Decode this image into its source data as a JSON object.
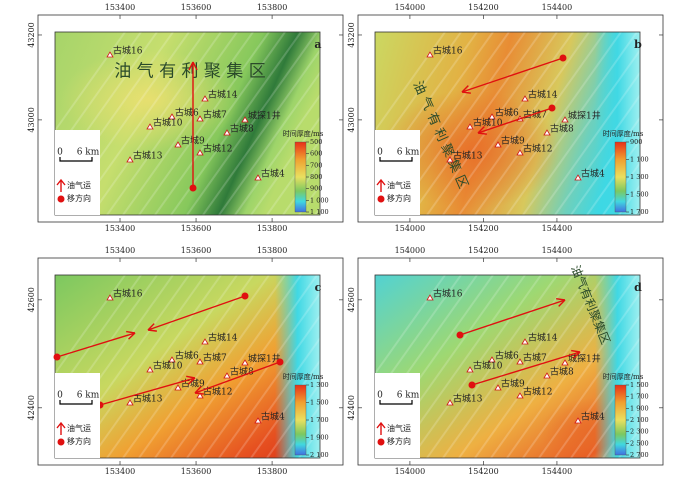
{
  "panels": [
    {
      "letter": "a",
      "xticks": [
        153400,
        153600,
        153800
      ],
      "xlim": [
        153229,
        153926
      ],
      "yticks": [
        43200,
        43000
      ],
      "ylim": [
        42776,
        43207
      ],
      "wells": [
        "古城16",
        "古城14",
        "古城6",
        "古城7",
        "古城10",
        "城探1井",
        "古城8",
        "古城9",
        "古城12",
        "古城13",
        "古城4"
      ],
      "region_label": "油 气 有 利 聚 集 区",
      "scale": [
        "0",
        "6 km"
      ],
      "legend": [
        "油气运",
        "移方向"
      ],
      "colorbar": {
        "title": "时间厚度/ms",
        "ticks": [
          500,
          600,
          700,
          800,
          900,
          {
            "value": 1000,
            "label": "1 000"
          },
          {
            "value": 1100,
            "label": "1 100"
          }
        ]
      }
    },
    {
      "letter": "b",
      "xticks": [
        154000,
        154200,
        154400
      ],
      "xlim": [
        153905,
        154626
      ],
      "yticks": [
        43200,
        43000
      ],
      "ylim": [
        42776,
        43207
      ],
      "wells": [
        "古城16",
        "古城14",
        "古城6",
        "古城7",
        "古城10",
        "城探1井",
        "古城8",
        "古城9",
        "古城12",
        "古城13",
        "古城4"
      ],
      "region_label": "油 气 有 利 聚 集 区",
      "scale": [
        "0",
        "6 km"
      ],
      "legend": [
        "油气运",
        "移方向"
      ],
      "colorbar": {
        "title": "时间厚度/ms",
        "ticks": [
          900,
          {
            "value": 1100,
            "label": "1 100"
          },
          {
            "value": 1300,
            "label": "1 300"
          },
          {
            "value": 1500,
            "label": "1 500"
          },
          {
            "value": 1700,
            "label": "1 700"
          }
        ]
      }
    },
    {
      "letter": "c",
      "xticks": [
        153400,
        153600,
        153800
      ],
      "xlim": [
        153229,
        153926
      ],
      "yticks": [
        42600,
        42400
      ],
      "ylim": [
        42307,
        42646
      ],
      "wells": [
        "古城16",
        "古城14",
        "古城6",
        "古城7",
        "古城10",
        "城探1井",
        "古城8",
        "古城9",
        "古城12",
        "古城13",
        "古城4"
      ],
      "scale": [
        "0",
        "6 km"
      ],
      "legend": [
        "油气运",
        "移方向"
      ],
      "colorbar": {
        "title": "时间厚度/ms",
        "ticks": [
          {
            "value": 1300,
            "label": "1 300"
          },
          {
            "value": 1500,
            "label": "1 500"
          },
          {
            "value": 1700,
            "label": "1 700"
          },
          {
            "value": 1900,
            "label": "1 900"
          },
          {
            "value": 2100,
            "label": "2 100"
          }
        ]
      }
    },
    {
      "letter": "d",
      "xticks": [
        154000,
        154200,
        154400
      ],
      "xlim": [
        153905,
        154626
      ],
      "yticks": [
        42600,
        42400
      ],
      "ylim": [
        42307,
        42646
      ],
      "wells": [
        "古城16",
        "古城14",
        "古城6",
        "古城7",
        "古城10",
        "城探1井",
        "古城8",
        "古城9",
        "古城12",
        "古城13",
        "古城4"
      ],
      "region_label": "油气有利聚集区",
      "scale": [
        "0",
        "6 km"
      ],
      "legend": [
        "油气运",
        "移方向"
      ],
      "colorbar": {
        "title": "时间厚度/ms",
        "ticks": [
          {
            "value": 1500,
            "label": "1 500"
          },
          {
            "value": 1700,
            "label": "1 700"
          },
          {
            "value": 1900,
            "label": "1 900"
          },
          {
            "value": 2100,
            "label": "2 100"
          },
          {
            "value": 2300,
            "label": "2 300"
          },
          {
            "value": 2500,
            "label": "2 500"
          },
          {
            "value": 2700,
            "label": "2 700"
          }
        ]
      }
    }
  ]
}
